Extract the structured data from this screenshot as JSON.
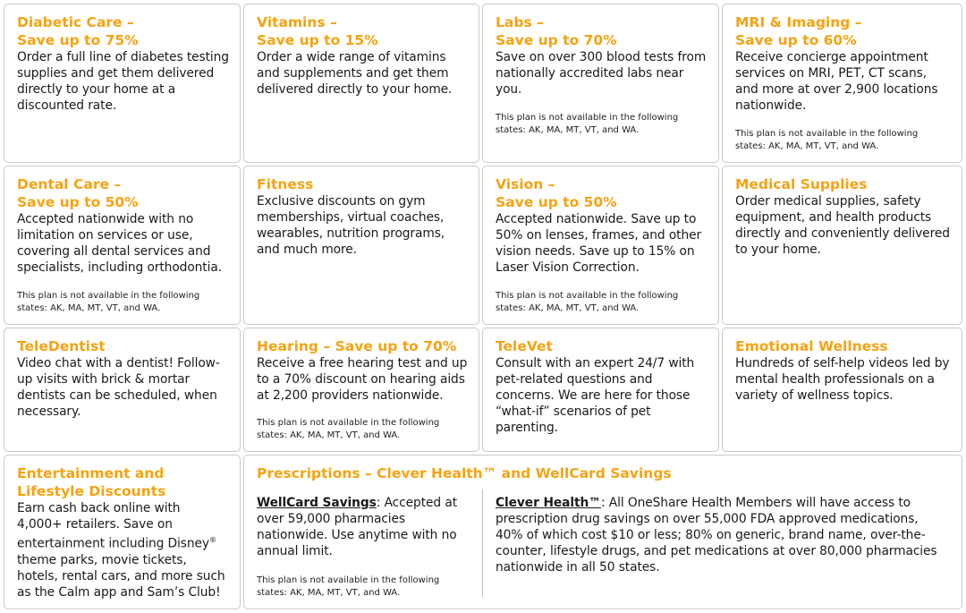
{
  "cards": {
    "diabetic": {
      "title1": "Diabetic Care –",
      "title2": "Save up to 75%",
      "body": "Order a full line of diabetes testing supplies and get them delivered directly to your home at a discounted rate."
    },
    "vitamins": {
      "title1": "Vitamins –",
      "title2": "Save up to 15%",
      "body": "Order a wide range of vitamins and supplements and get them delivered directly to your home."
    },
    "labs": {
      "title1": "Labs –",
      "title2": "Save up to 70%",
      "body": "Save on over 300 blood tests from nationally accredited labs near you.",
      "note": "This plan is not available in the following states: AK, MA, MT, VT, and WA."
    },
    "mri": {
      "title1": "MRI & Imaging –",
      "title2": "Save up to 60%",
      "body": "Receive concierge appointment services on MRI, PET, CT scans, and more at over 2,900 locations nationwide.",
      "note": "This plan is not available in the following states: AK, MA, MT, VT, and WA."
    },
    "dental": {
      "title1": "Dental Care –",
      "title2": "Save up to 50%",
      "body": "Accepted nationwide with no limitation on services or use, covering all dental services and specialists, including orthodontia.",
      "note": "This plan is not available in the following states: AK, MA, MT, VT, and WA."
    },
    "fitness": {
      "title1": "Fitness",
      "body": "Exclusive discounts on gym memberships, virtual coaches, wearables, nutrition programs, and much more."
    },
    "vision": {
      "title1": "Vision –",
      "title2": "Save up to 50%",
      "body": "Accepted nationwide. Save up to 50% on lenses, frames, and other vision needs. Save up to 15% on Laser Vision Correction.",
      "note": "This plan is not available in the following states: AK, MA, MT, VT, and WA."
    },
    "medical_supplies": {
      "title1": "Medical Supplies",
      "body": "Order medical supplies, safety equipment, and health products directly and conveniently delivered to your home."
    },
    "teledentist": {
      "title1": "TeleDentist",
      "body": "Video chat with a dentist! Follow-up visits with brick & mortar dentists can be scheduled, when necessary."
    },
    "hearing": {
      "title1": "Hearing – Save up to 70%",
      "body": "Receive a free hearing test and up to a 70% discount on hearing aids at 2,200 providers nationwide.",
      "note": "This plan is not available in the following states: AK, MA, MT, VT, and WA."
    },
    "televet": {
      "title1": "TeleVet",
      "body": "Consult with an expert 24/7 with pet-related questions and concerns. We are here for those “what-if” scenarios of pet parenting."
    },
    "emotional": {
      "title1": "Emotional Wellness",
      "body": "Hundreds of self-help videos led by mental health professionals on a variety of wellness topics."
    },
    "entertainment": {
      "title1": "Entertainment and",
      "title2": "Lifestyle Discounts",
      "body_a": "Earn cash back online with 4,000+ retailers. Save on entertainment including Disney",
      "body_reg": "®",
      "body_b": " theme parks, movie tickets, hotels, rental cars, and more such as the Calm app and Sam’s Club!"
    },
    "prescriptions": {
      "title1": "Prescriptions – Clever Health™ and WellCard Savings",
      "wellcard_label": "WellCard Savings",
      "wellcard_body": ": Accepted at over 59,000 pharmacies nationwide. Use anytime with no annual limit.",
      "wellcard_note": "This plan is not available in the following states: AK, MA, MT, VT, and WA.",
      "clever_label": "Clever Health™",
      "clever_body": ": All OneShare Health Members will have access to prescription drug savings on over 55,000 FDA approved medications, 40% of which cost $10 or less; 80% on generic, brand name, over-the-counter, lifestyle drugs, and pet medications at over 80,000 pharmacies nationwide in all 50 states."
    }
  },
  "colors": {
    "accent": "#f5a313",
    "border": "#c9c9c9"
  }
}
